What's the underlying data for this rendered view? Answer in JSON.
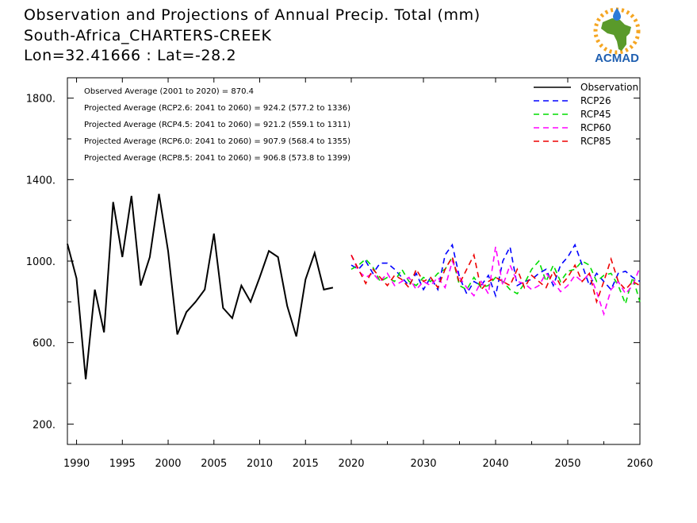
{
  "title_lines": [
    "Observation and Projections of Annual Precip. Total (mm)",
    "South-Africa_CHARTERS-CREEK",
    "Lon=32.41666 : Lat=-28.2"
  ],
  "logo": {
    "text": "ACMAD",
    "colors": {
      "africa": "#5a9a2a",
      "sun": "#f5a623",
      "drop": "#2b7bd8",
      "text": "#1f5fb0"
    }
  },
  "chart_data": {
    "type": "line",
    "title": "Observation and Projections of Annual Precip. Total (mm)",
    "subtitle": "South-Africa_CHARTERS-CREEK  Lon=32.41666 : Lat=-28.2",
    "ylim": [
      100,
      1900
    ],
    "y_ticks": [
      200,
      600,
      1000,
      1400,
      1800
    ],
    "y_tick_labels": [
      "200.",
      "600.",
      "1000.",
      "1400.",
      "1800."
    ],
    "x_ticks": [
      1990,
      1995,
      2000,
      2005,
      2010,
      2015,
      2020,
      2030,
      2040,
      2050,
      2060
    ],
    "x_tick_labels": [
      "1990",
      "1995",
      "2000",
      "2005",
      "2010",
      "2015",
      "2020",
      "2030",
      "2040",
      "2050",
      "2060"
    ],
    "legend_position": "top-right",
    "annotations": [
      "Observed Average (2001 to 2020) = 870.4",
      "Projected Average (RCP2.6: 2041 to 2060) = 924.2 (577.2 to 1336)",
      "Projected Average (RCP4.5: 2041 to 2060) = 921.2 (559.1 to 1311)",
      "Projected Average (RCP6.0: 2041 to 2060) = 907.9 (568.4 to 1355)",
      "Projected Average (RCP8.5: 2041 to 2060) = 906.8 (573.8 to 1399)"
    ],
    "series": [
      {
        "name": "Observation",
        "color": "#000000",
        "dash": false,
        "x": [
          1989,
          1990,
          1991,
          1992,
          1993,
          1994,
          1995,
          1996,
          1997,
          1998,
          1999,
          2000,
          2001,
          2002,
          2003,
          2004,
          2005,
          2006,
          2007,
          2008,
          2009,
          2010,
          2011,
          2012,
          2013,
          2014,
          2015,
          2016,
          2017,
          2018,
          2019,
          2020
        ],
        "y": [
          1085,
          915,
          420,
          860,
          650,
          1290,
          1020,
          1320,
          880,
          1020,
          1330,
          1050,
          640,
          750,
          800,
          860,
          1135,
          770,
          720,
          880,
          800,
          920,
          1050,
          1020,
          780,
          630,
          910,
          1040,
          860,
          870,
          null,
          null
        ]
      },
      {
        "name": "RCP26",
        "color": "#0000ff",
        "dash": true,
        "x": [
          2020,
          2021,
          2022,
          2023,
          2024,
          2025,
          2026,
          2027,
          2028,
          2029,
          2030,
          2031,
          2032,
          2033,
          2034,
          2035,
          2036,
          2037,
          2038,
          2039,
          2040,
          2041,
          2042,
          2043,
          2044,
          2045,
          2046,
          2047,
          2048,
          2049,
          2050,
          2051,
          2052,
          2053,
          2054,
          2055,
          2056,
          2057,
          2058,
          2059,
          2060
        ],
        "y": [
          980,
          960,
          1000,
          940,
          990,
          990,
          960,
          920,
          880,
          940,
          860,
          920,
          860,
          1030,
          1080,
          920,
          840,
          900,
          880,
          930,
          830,
          1000,
          1070,
          880,
          900,
          910,
          940,
          960,
          880,
          980,
          1020,
          1080,
          980,
          880,
          940,
          900,
          860,
          940,
          950,
          920,
          900
        ]
      },
      {
        "name": "RCP45",
        "color": "#00dd00",
        "dash": true,
        "x": [
          2020,
          2021,
          2022,
          2023,
          2024,
          2025,
          2026,
          2027,
          2028,
          2029,
          2030,
          2031,
          2032,
          2033,
          2034,
          2035,
          2036,
          2037,
          2038,
          2039,
          2040,
          2041,
          2042,
          2043,
          2044,
          2045,
          2046,
          2047,
          2048,
          2049,
          2050,
          2051,
          2052,
          2053,
          2054,
          2055,
          2056,
          2057,
          2058,
          2059,
          2060
        ],
        "y": [
          960,
          980,
          1010,
          970,
          900,
          920,
          900,
          960,
          900,
          880,
          920,
          900,
          940,
          960,
          1020,
          880,
          860,
          920,
          870,
          880,
          920,
          900,
          860,
          840,
          890,
          960,
          1000,
          900,
          980,
          900,
          950,
          960,
          1000,
          980,
          900,
          930,
          940,
          880,
          790,
          920,
          800
        ]
      },
      {
        "name": "RCP60",
        "color": "#ff00ff",
        "dash": true,
        "x": [
          2020,
          2021,
          2022,
          2023,
          2024,
          2025,
          2026,
          2027,
          2028,
          2029,
          2030,
          2031,
          2032,
          2033,
          2034,
          2035,
          2036,
          2037,
          2038,
          2039,
          2040,
          2041,
          2042,
          2043,
          2044,
          2045,
          2046,
          2047,
          2048,
          2049,
          2050,
          2051,
          2052,
          2053,
          2054,
          2055,
          2056,
          2057,
          2058,
          2059,
          2060
        ],
        "y": [
          1030,
          950,
          920,
          940,
          900,
          940,
          880,
          900,
          920,
          860,
          900,
          880,
          920,
          870,
          1000,
          920,
          870,
          830,
          900,
          840,
          1070,
          880,
          980,
          900,
          890,
          860,
          880,
          940,
          900,
          850,
          880,
          930,
          900,
          940,
          850,
          740,
          860,
          900,
          840,
          880,
          970
        ]
      },
      {
        "name": "RCP85",
        "color": "#ee0000",
        "dash": true,
        "x": [
          2020,
          2021,
          2022,
          2023,
          2024,
          2025,
          2026,
          2027,
          2028,
          2029,
          2030,
          2031,
          2032,
          2033,
          2034,
          2035,
          2036,
          2037,
          2038,
          2039,
          2040,
          2041,
          2042,
          2043,
          2044,
          2045,
          2046,
          2047,
          2048,
          2049,
          2050,
          2051,
          2052,
          2053,
          2054,
          2055,
          2056,
          2057,
          2058,
          2059,
          2060
        ],
        "y": [
          1030,
          960,
          890,
          960,
          920,
          880,
          930,
          910,
          870,
          960,
          900,
          920,
          870,
          960,
          1020,
          890,
          960,
          1030,
          860,
          900,
          920,
          900,
          880,
          960,
          870,
          930,
          900,
          870,
          950,
          880,
          920,
          980,
          900,
          940,
          800,
          900,
          1010,
          900,
          860,
          900,
          880
        ]
      }
    ]
  }
}
